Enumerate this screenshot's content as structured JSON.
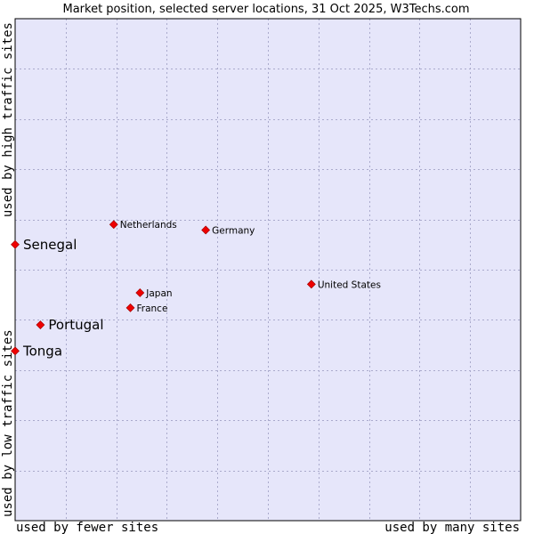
{
  "chart_data": {
    "type": "scatter",
    "title": "Market position, selected server locations, 31 Oct 2025, W3Techs.com",
    "xlabel_left": "used by fewer sites",
    "xlabel_right": "used by many sites",
    "ylabel_bottom": "used by low traffic sites",
    "ylabel_top": "used by high traffic sites",
    "xlim": [
      0,
      10
    ],
    "ylim": [
      0,
      10
    ],
    "grid": true,
    "colors": {
      "plot_bg": "#e6e6fa",
      "grid": "#aaaacc",
      "border": "#000000",
      "marker": "#ee0000"
    },
    "points": [
      {
        "label": "Netherlands",
        "x": 1.95,
        "y": 5.9,
        "highlight": false
      },
      {
        "label": "Germany",
        "x": 3.77,
        "y": 5.79,
        "highlight": false
      },
      {
        "label": "Senegal",
        "x": 0.0,
        "y": 5.5,
        "highlight": true
      },
      {
        "label": "United States",
        "x": 5.86,
        "y": 4.71,
        "highlight": false
      },
      {
        "label": "Japan",
        "x": 2.47,
        "y": 4.54,
        "highlight": false
      },
      {
        "label": "France",
        "x": 2.28,
        "y": 4.24,
        "highlight": false
      },
      {
        "label": "Portugal",
        "x": 0.5,
        "y": 3.9,
        "highlight": true
      },
      {
        "label": "Tonga",
        "x": 0.0,
        "y": 3.38,
        "highlight": true
      }
    ]
  }
}
